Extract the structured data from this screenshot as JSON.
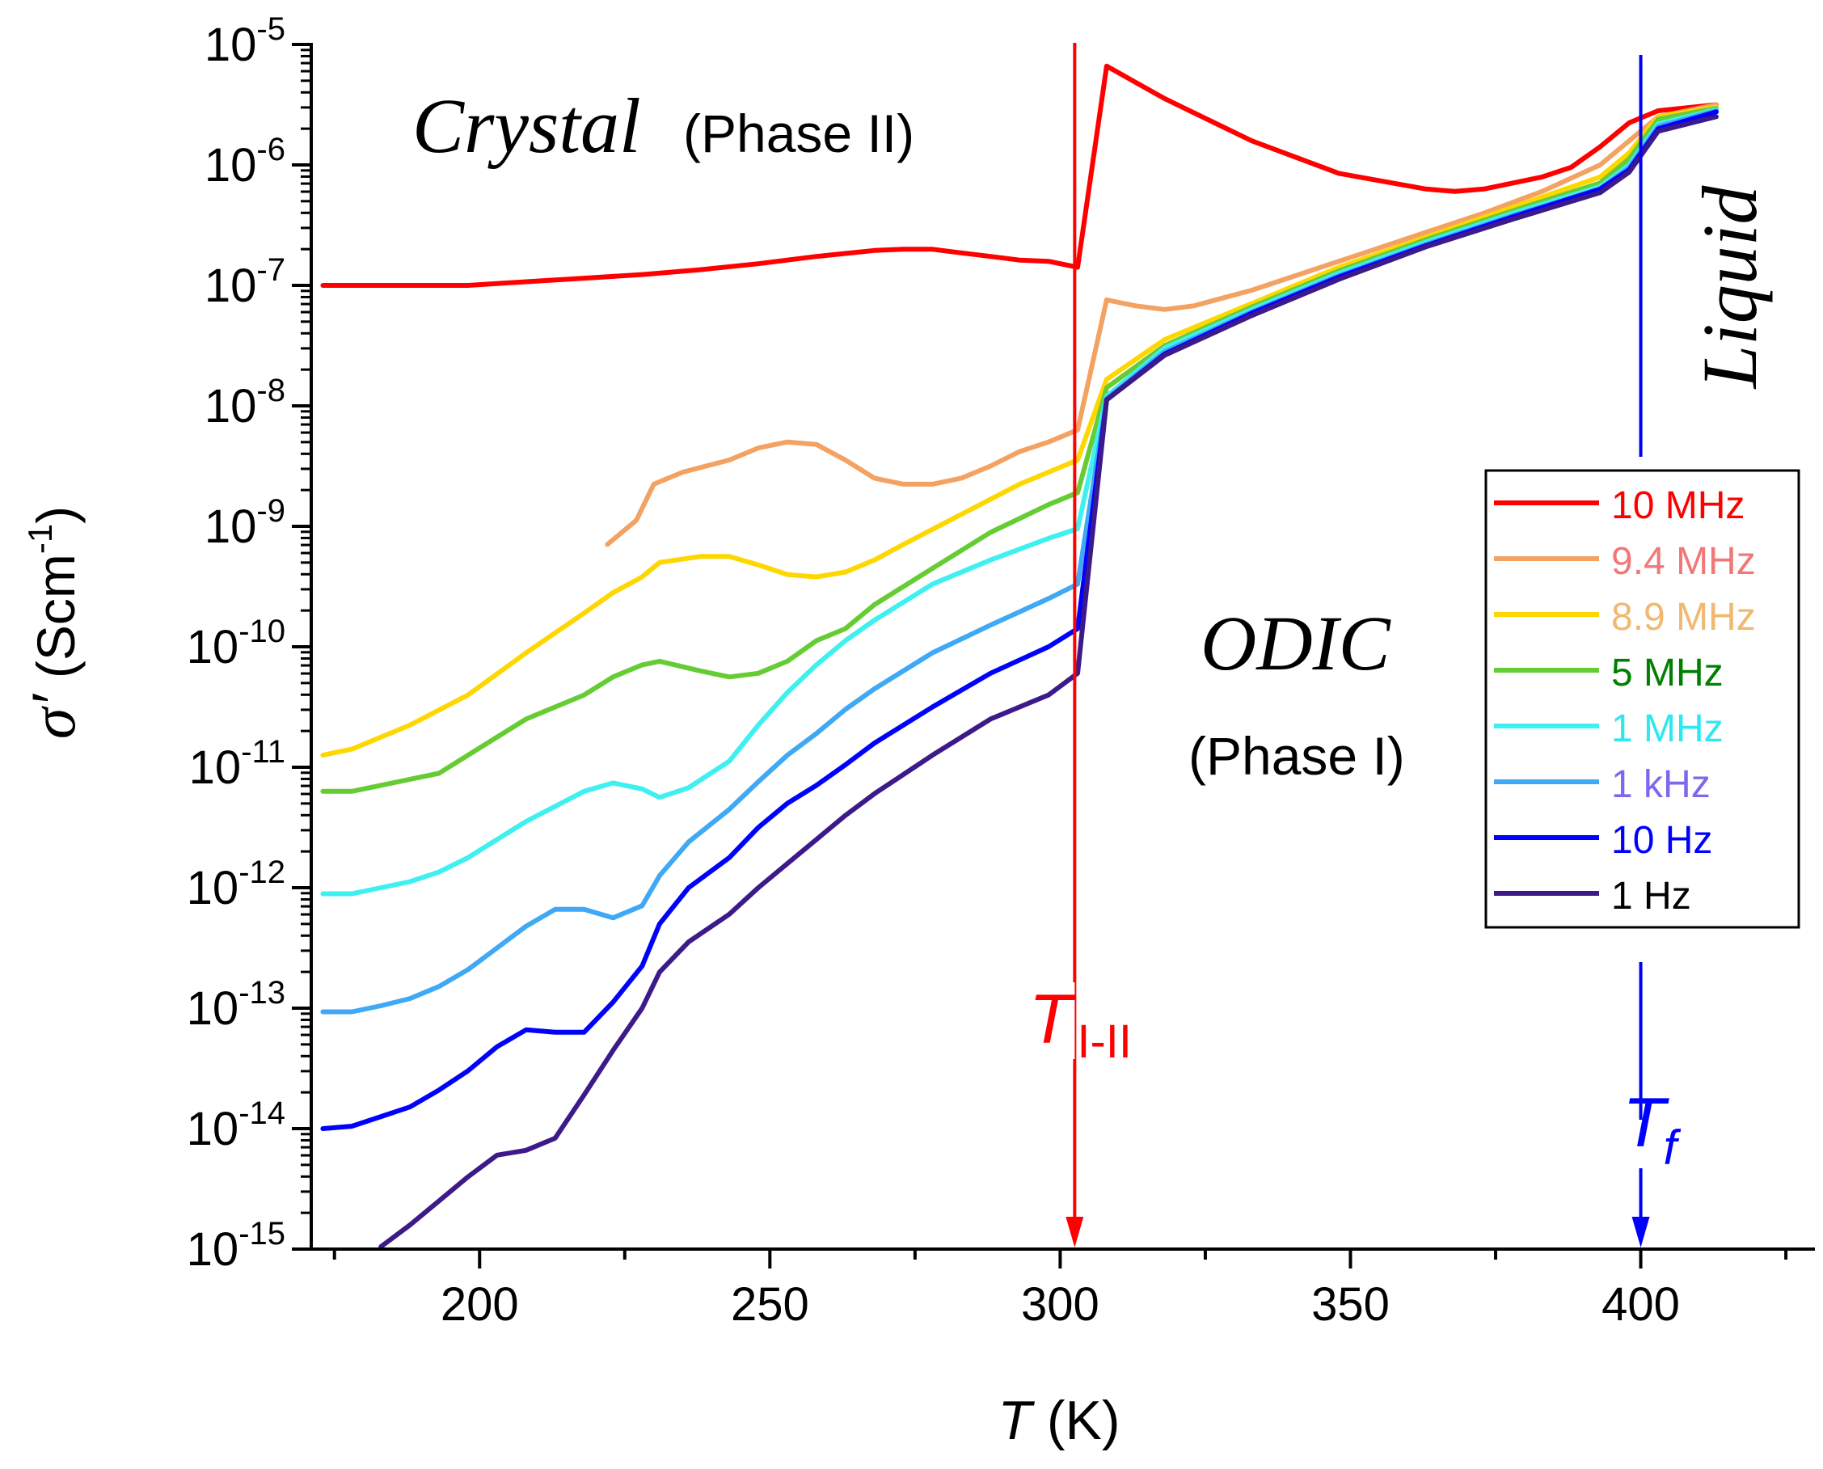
{
  "chart_data": {
    "type": "line",
    "x_scale": "linear",
    "y_scale": "log",
    "xlim": [
      171,
      430
    ],
    "ylim_exp": [
      -15,
      -5
    ],
    "x_ticks": [
      200,
      250,
      300,
      350,
      400
    ],
    "x_tick_labels": [
      "200",
      "250",
      "300",
      "350",
      "400"
    ],
    "y_ticks_exp": [
      -15,
      -14,
      -13,
      -12,
      -11,
      -10,
      -9,
      -8,
      -7,
      -6,
      -5
    ],
    "y_tick_base": "10",
    "y_tick_exps": [
      "-15",
      "-14",
      "-13",
      "-12",
      "-11",
      "-10",
      "-9",
      "-8",
      "-7",
      "-6",
      "-5"
    ],
    "xlabel": {
      "var": "T",
      "unit": " (K)"
    },
    "ylabel": {
      "var": "σ′",
      "unit": "(Scm",
      "exp": "-1",
      "close": ")"
    },
    "annotations": {
      "crystal": "Crystal",
      "phase2": "(Phase II)",
      "odic": "ODIC",
      "phase1": "(Phase I)",
      "liquid": "Liquid",
      "t_transition": {
        "main": "T",
        "sub": "I-II",
        "x": 302.5,
        "color": "#ff0000"
      },
      "t_fusion": {
        "main": "T",
        "sub": "f",
        "x": 400,
        "color": "#0000ff"
      }
    },
    "series": [
      {
        "name": "10 MHz",
        "color": "#ff0000",
        "label_color": "#ff0000",
        "x": [
          173,
          188,
          198,
          208,
          218,
          228,
          238,
          248,
          258,
          268,
          273,
          278,
          283,
          288,
          293,
          298,
          303,
          308,
          318,
          333,
          348,
          363,
          368,
          373,
          383,
          388,
          393,
          398,
          403,
          413
        ],
        "y": [
          -7.0,
          -7.0,
          -7.0,
          -6.97,
          -6.94,
          -6.91,
          -6.87,
          -6.82,
          -6.76,
          -6.71,
          -6.7,
          -6.7,
          -6.73,
          -6.76,
          -6.79,
          -6.8,
          -6.85,
          -5.18,
          -5.45,
          -5.8,
          -6.07,
          -6.2,
          -6.22,
          -6.2,
          -6.1,
          -6.02,
          -5.85,
          -5.65,
          -5.55,
          -5.5
        ]
      },
      {
        "name": "9.4 MHz",
        "color": "#f4a262",
        "label_color": "#f07878",
        "x": [
          222,
          227,
          230,
          235,
          243,
          248,
          253,
          258,
          263,
          268,
          273,
          278,
          283,
          288,
          293,
          298,
          303,
          308,
          313,
          318,
          323,
          333,
          343,
          353,
          363,
          373,
          383,
          393,
          398,
          403,
          413
        ],
        "y": [
          -9.15,
          -8.95,
          -8.65,
          -8.55,
          -8.45,
          -8.35,
          -8.3,
          -8.32,
          -8.45,
          -8.6,
          -8.65,
          -8.65,
          -8.6,
          -8.5,
          -8.38,
          -8.3,
          -8.2,
          -7.12,
          -7.17,
          -7.2,
          -7.17,
          -7.04,
          -6.88,
          -6.72,
          -6.56,
          -6.4,
          -6.22,
          -6.0,
          -5.8,
          -5.6,
          -5.5
        ]
      },
      {
        "name": "8.9 MHz",
        "color": "#ffd700",
        "label_color": "#f0b870",
        "x": [
          173,
          178,
          188,
          198,
          208,
          218,
          223,
          228,
          231,
          238,
          243,
          248,
          253,
          258,
          263,
          268,
          273,
          283,
          293,
          303,
          308,
          318,
          333,
          348,
          363,
          378,
          393,
          398,
          403,
          413
        ],
        "y": [
          -10.9,
          -10.85,
          -10.65,
          -10.4,
          -10.05,
          -9.72,
          -9.55,
          -9.42,
          -9.3,
          -9.25,
          -9.25,
          -9.32,
          -9.4,
          -9.42,
          -9.38,
          -9.28,
          -9.15,
          -8.9,
          -8.65,
          -8.45,
          -7.78,
          -7.45,
          -7.15,
          -6.85,
          -6.6,
          -6.35,
          -6.1,
          -5.9,
          -5.6,
          -5.52
        ]
      },
      {
        "name": "5 MHz",
        "color": "#66cc33",
        "label_color": "#008000",
        "x": [
          173,
          178,
          188,
          193,
          198,
          208,
          218,
          223,
          228,
          231,
          238,
          243,
          248,
          253,
          258,
          263,
          268,
          278,
          288,
          298,
          303,
          308,
          318,
          333,
          348,
          363,
          378,
          393,
          398,
          403,
          413
        ],
        "y": [
          -11.2,
          -11.2,
          -11.1,
          -11.05,
          -10.9,
          -10.6,
          -10.4,
          -10.25,
          -10.15,
          -10.12,
          -10.2,
          -10.25,
          -10.22,
          -10.12,
          -9.95,
          -9.85,
          -9.65,
          -9.35,
          -9.05,
          -8.82,
          -8.72,
          -7.85,
          -7.5,
          -7.18,
          -6.88,
          -6.62,
          -6.38,
          -6.15,
          -5.95,
          -5.62,
          -5.53
        ]
      },
      {
        "name": "1 MHz",
        "color": "#3ff0f0",
        "label_color": "#2ee8f0",
        "x": [
          173,
          178,
          188,
          193,
          198,
          208,
          218,
          223,
          228,
          231,
          236,
          243,
          248,
          253,
          258,
          263,
          268,
          278,
          288,
          298,
          303,
          308,
          318,
          333,
          348,
          363,
          378,
          393,
          398,
          403,
          413
        ],
        "y": [
          -12.05,
          -12.05,
          -11.95,
          -11.87,
          -11.75,
          -11.45,
          -11.2,
          -11.13,
          -11.18,
          -11.25,
          -11.17,
          -10.95,
          -10.65,
          -10.38,
          -10.15,
          -9.95,
          -9.78,
          -9.48,
          -9.28,
          -9.1,
          -9.02,
          -7.92,
          -7.52,
          -7.2,
          -6.9,
          -6.64,
          -6.4,
          -6.18,
          -6.0,
          -5.66,
          -5.54
        ]
      },
      {
        "name": "1 kHz",
        "color": "#3fa9f5",
        "label_color": "#7b68ee",
        "x": [
          173,
          178,
          183,
          188,
          193,
          198,
          203,
          208,
          213,
          218,
          223,
          228,
          231,
          236,
          243,
          248,
          253,
          258,
          263,
          268,
          278,
          288,
          298,
          303,
          308,
          318,
          333,
          348,
          363,
          378,
          393,
          398,
          403,
          413
        ],
        "y": [
          -13.03,
          -13.03,
          -12.98,
          -12.92,
          -12.82,
          -12.68,
          -12.5,
          -12.32,
          -12.18,
          -12.18,
          -12.25,
          -12.15,
          -11.9,
          -11.62,
          -11.35,
          -11.12,
          -10.9,
          -10.72,
          -10.52,
          -10.35,
          -10.05,
          -9.82,
          -9.6,
          -9.48,
          -7.94,
          -7.55,
          -7.22,
          -6.92,
          -6.66,
          -6.42,
          -6.2,
          -6.02,
          -5.68,
          -5.55
        ]
      },
      {
        "name": "10 Hz",
        "color": "#0000ff",
        "label_color": "#0000ff",
        "x": [
          173,
          178,
          183,
          188,
          193,
          198,
          203,
          208,
          213,
          218,
          223,
          228,
          231,
          236,
          243,
          248,
          253,
          258,
          263,
          268,
          278,
          288,
          298,
          303,
          308,
          318,
          333,
          348,
          363,
          378,
          393,
          398,
          403,
          413
        ],
        "y": [
          -14.0,
          -13.98,
          -13.9,
          -13.82,
          -13.68,
          -13.52,
          -13.32,
          -13.18,
          -13.2,
          -13.2,
          -12.95,
          -12.65,
          -12.3,
          -12.0,
          -11.75,
          -11.5,
          -11.3,
          -11.15,
          -10.98,
          -10.8,
          -10.5,
          -10.22,
          -10.0,
          -9.85,
          -7.95,
          -7.57,
          -7.23,
          -6.93,
          -6.67,
          -6.43,
          -6.2,
          -6.04,
          -5.7,
          -5.56
        ]
      },
      {
        "name": "1 Hz",
        "color": "#3d1a8a",
        "label_color": "#000000",
        "x": [
          183,
          188,
          193,
          198,
          203,
          208,
          213,
          218,
          223,
          228,
          231,
          236,
          243,
          248,
          253,
          258,
          263,
          268,
          278,
          288,
          298,
          303,
          308,
          318,
          333,
          348,
          363,
          378,
          393,
          398,
          403,
          413
        ],
        "y": [
          -14.98,
          -14.8,
          -14.6,
          -14.4,
          -14.22,
          -14.18,
          -14.08,
          -13.72,
          -13.35,
          -13.0,
          -12.7,
          -12.45,
          -12.22,
          -12.0,
          -11.8,
          -11.6,
          -11.4,
          -11.22,
          -10.9,
          -10.6,
          -10.4,
          -10.22,
          -7.95,
          -7.58,
          -7.25,
          -6.95,
          -6.68,
          -6.45,
          -6.23,
          -6.06,
          -5.72,
          -5.6
        ]
      }
    ]
  }
}
